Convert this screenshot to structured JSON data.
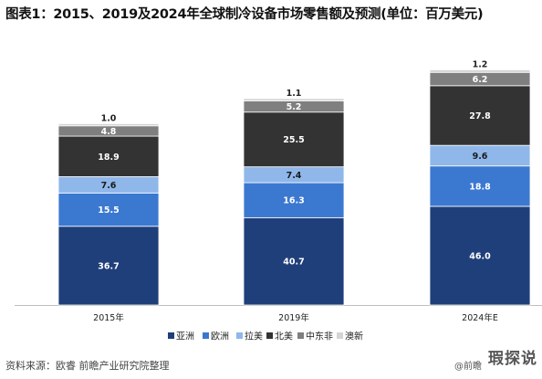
{
  "title": "图表1：2015、2019及2024年全球制冷设备市场零售额及预测(单位：百万美元)",
  "source": "资料来源：欧睿 前瞻产业研究院整理",
  "credit": "@前瞻",
  "stamp": "瑕探说",
  "colors": {
    "亚洲": "#1f3f7a",
    "欧洲": "#3b78d0",
    "拉美": "#8fb7ea",
    "北美": "#333333",
    "中东非": "#7f7f7f",
    "澳新": "#d4d4d4"
  },
  "chart_data": {
    "type": "bar",
    "stacked": true,
    "categories": [
      "2015年",
      "2019年",
      "2024年E"
    ],
    "series": [
      {
        "name": "亚洲",
        "values": [
          36.7,
          40.7,
          46.0
        ]
      },
      {
        "name": "欧洲",
        "values": [
          15.5,
          16.3,
          18.8
        ]
      },
      {
        "name": "拉美",
        "values": [
          7.6,
          7.4,
          9.6
        ]
      },
      {
        "name": "北美",
        "values": [
          18.9,
          25.5,
          27.8
        ]
      },
      {
        "name": "中东非",
        "values": [
          4.8,
          5.2,
          6.2
        ]
      },
      {
        "name": "澳新",
        "values": [
          1.0,
          1.1,
          1.2
        ]
      }
    ],
    "grid": false,
    "legend": "bottom"
  }
}
